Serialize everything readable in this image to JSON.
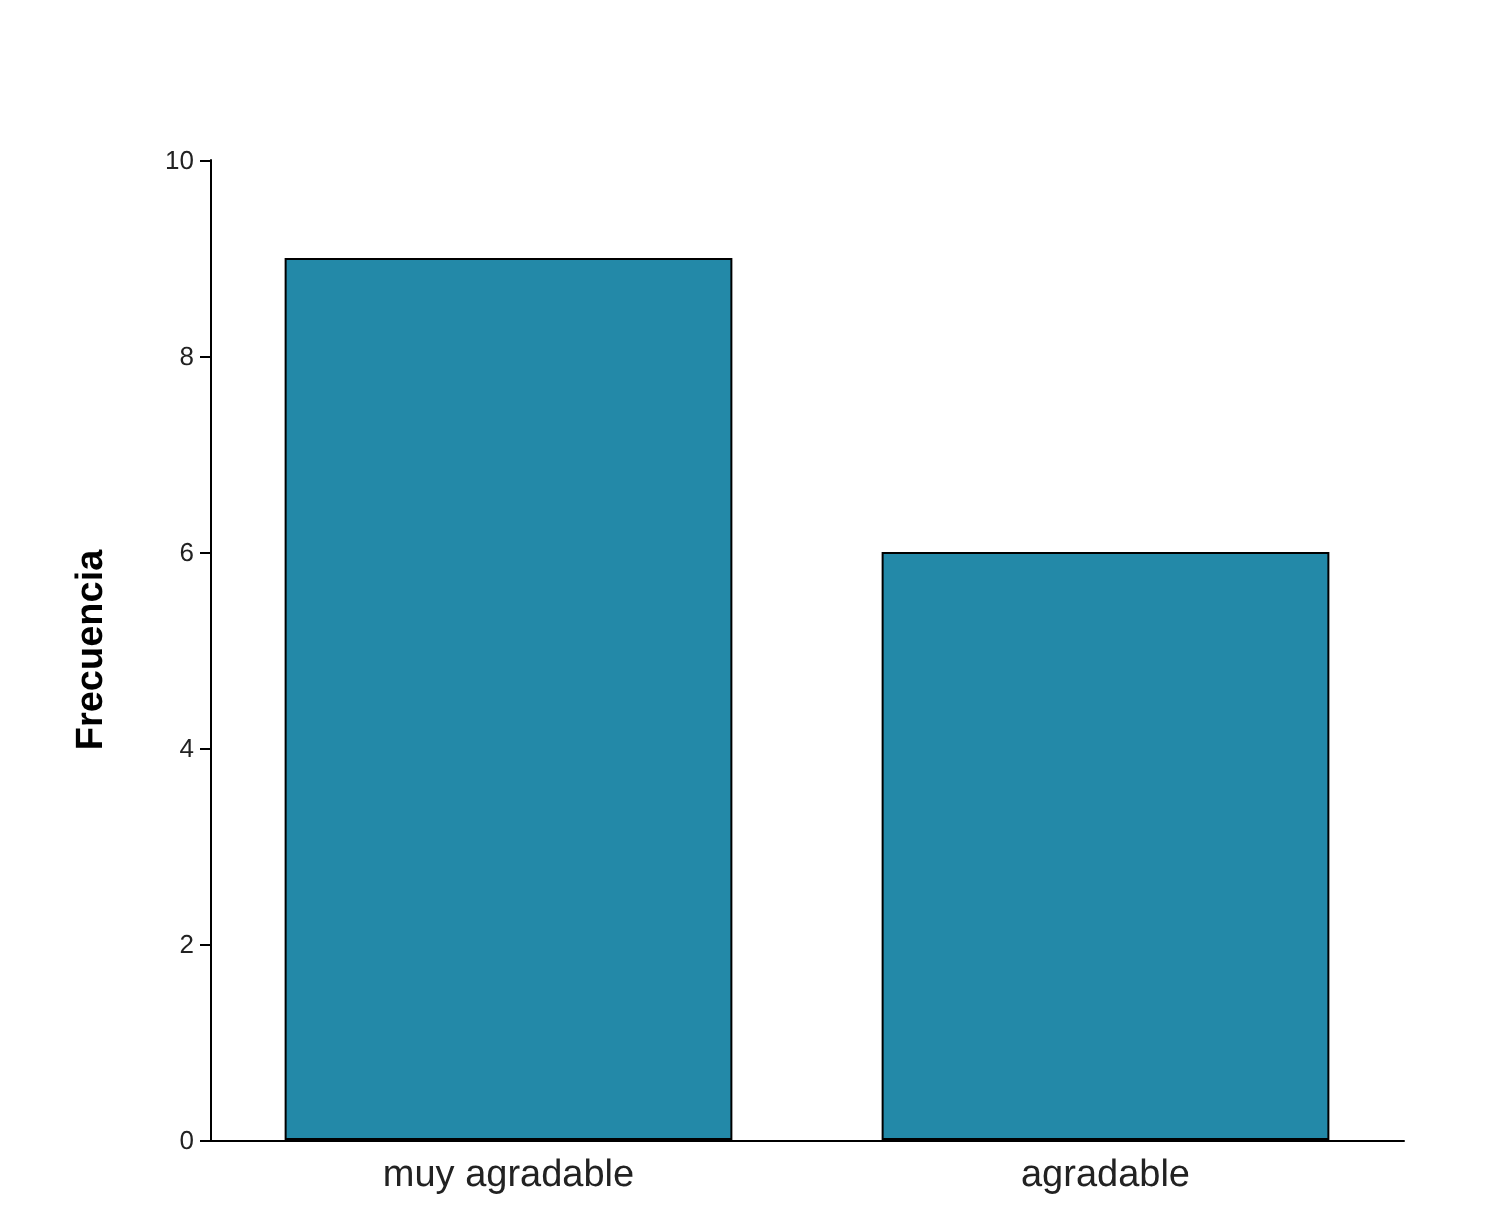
{
  "chart_data": {
    "type": "bar",
    "ylabel": "Frecuencia",
    "categories": [
      "muy agradable",
      "agradable"
    ],
    "values": [
      9,
      6
    ],
    "color": "#2389a8",
    "ylim": [
      0,
      10
    ],
    "yticks": [
      0,
      2,
      4,
      6,
      8,
      10
    ],
    "grid": false
  }
}
